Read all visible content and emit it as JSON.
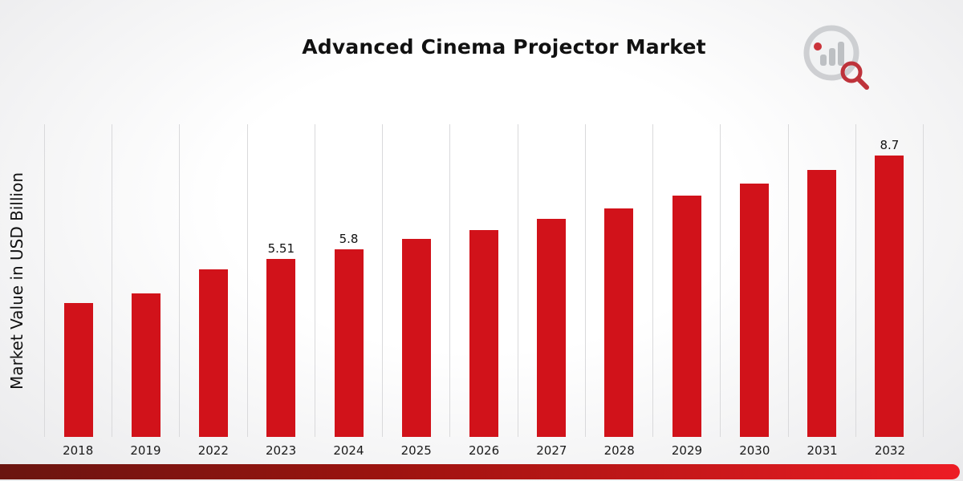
{
  "title": "Advanced Cinema Projector Market",
  "ylabel": "Market Value in USD Billion",
  "colors": {
    "bar": "#d1121a",
    "gridline": "#d9d9db",
    "strip_gradient_left": "#6a1510",
    "strip_gradient_mid": "#9c130f",
    "strip_gradient_right": "#ed1c24"
  },
  "logo": {
    "name": "brand-chart-magnifier-logo"
  },
  "chart_data": {
    "type": "bar",
    "title": "Advanced Cinema Projector Market",
    "xlabel": "",
    "ylabel": "Market Value in USD Billion",
    "categories": [
      "2018",
      "2019",
      "2022",
      "2023",
      "2024",
      "2025",
      "2026",
      "2027",
      "2028",
      "2029",
      "2030",
      "2031",
      "2032"
    ],
    "values": [
      4.15,
      4.44,
      5.18,
      5.51,
      5.8,
      6.12,
      6.4,
      6.74,
      7.07,
      7.46,
      7.83,
      8.26,
      8.7
    ],
    "data_labels": [
      "",
      "",
      "",
      "5.51",
      "5.8",
      "",
      "",
      "",
      "",
      "",
      "",
      "",
      "8.7"
    ],
    "ylim": [
      0,
      9.67
    ],
    "grid": "vertical-only",
    "legend": "none",
    "bar_color": "#d1121a"
  }
}
